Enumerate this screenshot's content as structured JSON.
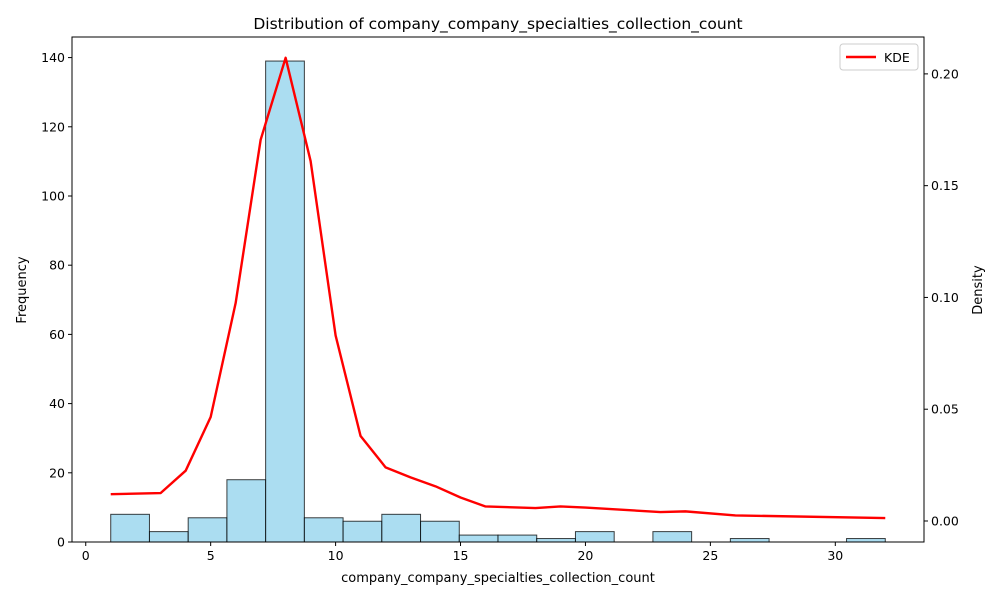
{
  "chart_data": {
    "type": "histogram",
    "title": "Distribution of company_company_specialties_collection_count",
    "xlabel": "company_company_specialties_collection_count",
    "ylabel": "Frequency",
    "y2label": "Density",
    "xlim": [
      -0.55,
      33.55
    ],
    "ylim": [
      0,
      145.95
    ],
    "y2lim": [
      -0.0094,
      0.2165
    ],
    "xticks": [
      "0",
      "5",
      "10",
      "15",
      "20",
      "25",
      "30"
    ],
    "yticks": [
      "0",
      "20",
      "40",
      "60",
      "80",
      "100",
      "120",
      "140"
    ],
    "y2ticks": [
      "0.00",
      "0.05",
      "0.10",
      "0.15",
      "0.20"
    ],
    "bins": [
      {
        "start": 1.0,
        "end": 2.55,
        "count": 8
      },
      {
        "start": 2.55,
        "end": 4.1,
        "count": 3
      },
      {
        "start": 4.1,
        "end": 5.65,
        "count": 7
      },
      {
        "start": 5.65,
        "end": 7.2,
        "count": 18
      },
      {
        "start": 7.2,
        "end": 8.75,
        "count": 139
      },
      {
        "start": 8.75,
        "end": 10.3,
        "count": 7
      },
      {
        "start": 10.3,
        "end": 11.85,
        "count": 6
      },
      {
        "start": 11.85,
        "end": 13.4,
        "count": 8
      },
      {
        "start": 13.4,
        "end": 14.95,
        "count": 6
      },
      {
        "start": 14.95,
        "end": 16.5,
        "count": 2
      },
      {
        "start": 16.5,
        "end": 18.05,
        "count": 2
      },
      {
        "start": 18.05,
        "end": 19.6,
        "count": 1
      },
      {
        "start": 19.6,
        "end": 21.15,
        "count": 3
      },
      {
        "start": 21.15,
        "end": 22.7,
        "count": 0
      },
      {
        "start": 22.7,
        "end": 24.25,
        "count": 3
      },
      {
        "start": 24.25,
        "end": 25.8,
        "count": 0
      },
      {
        "start": 25.8,
        "end": 27.35,
        "count": 1
      },
      {
        "start": 27.35,
        "end": 28.9,
        "count": 0
      },
      {
        "start": 28.9,
        "end": 30.45,
        "count": 0
      },
      {
        "start": 30.45,
        "end": 32.0,
        "count": 1
      }
    ],
    "kde": {
      "name": "KDE",
      "color": "#ff0000",
      "x": [
        1,
        3,
        4,
        5,
        6,
        7,
        8,
        9,
        10,
        11,
        12,
        13,
        14,
        15,
        16,
        18,
        19,
        20,
        23,
        24,
        26,
        32
      ],
      "y": [
        0.012,
        0.0125,
        0.0225,
        0.0465,
        0.0975,
        0.1705,
        0.2072,
        0.161,
        0.083,
        0.038,
        0.024,
        0.0195,
        0.0155,
        0.0105,
        0.0065,
        0.0058,
        0.0065,
        0.006,
        0.004,
        0.0043,
        0.0025,
        0.0013
      ]
    },
    "bar_color": "#87ceeb",
    "bar_edge_color": "#000000",
    "legend": {
      "label": "KDE",
      "position": "top-right"
    },
    "grid": false
  }
}
